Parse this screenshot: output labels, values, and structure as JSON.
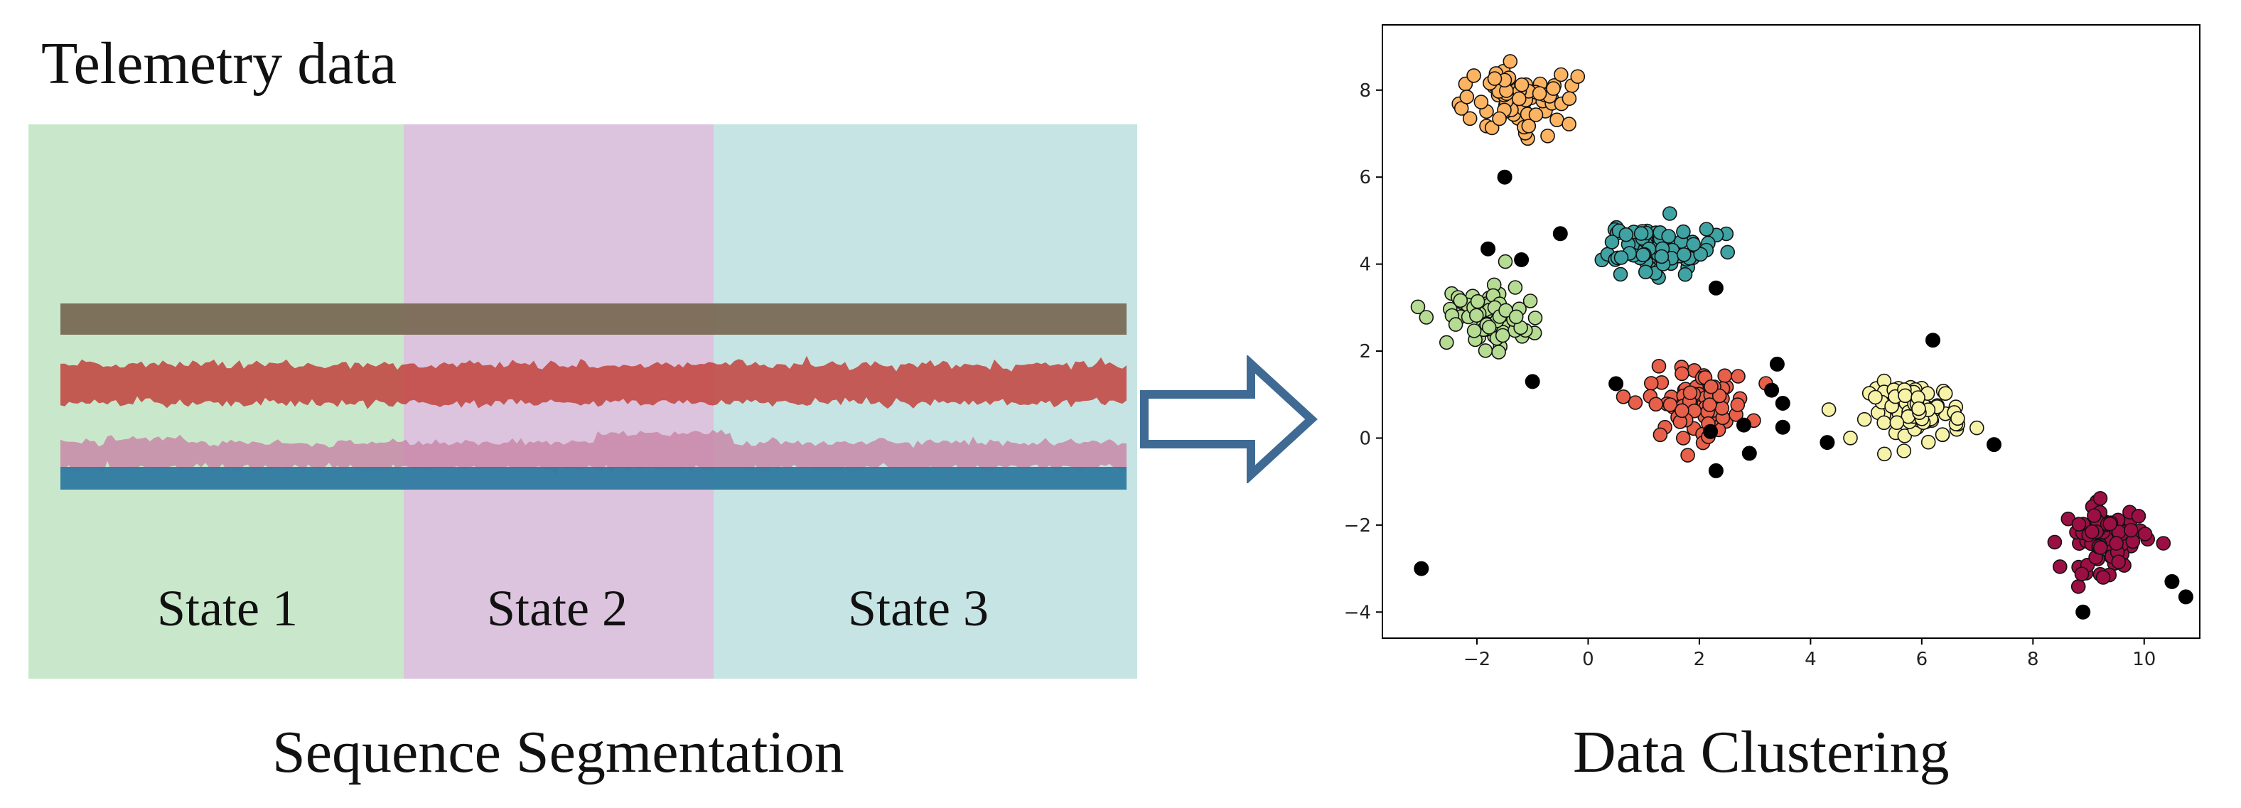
{
  "left_panel": {
    "title": "Telemetry data",
    "caption": "Sequence Segmentation",
    "states": [
      {
        "label": "State 1",
        "color": "#c9e8cb"
      },
      {
        "label": "State 2",
        "color": "#dcc3de"
      },
      {
        "label": "State 3",
        "color": "#c6e4e3"
      }
    ],
    "signal_colors": [
      "#7a6a55",
      "#c24a45",
      "#c988a8",
      "#2f7aa0"
    ]
  },
  "arrow": {
    "color": "#3f6a94"
  },
  "right_panel": {
    "caption": "Data Clustering"
  },
  "chart_data": {
    "type": "scatter",
    "title": "",
    "xlabel": "",
    "ylabel": "",
    "xlim": [
      -3.7,
      11.0
    ],
    "ylim": [
      -4.6,
      9.5
    ],
    "xticks": [
      -2,
      0,
      2,
      4,
      6,
      8,
      10
    ],
    "yticks": [
      -4,
      -2,
      0,
      2,
      4,
      6,
      8
    ],
    "xtick_labels": [
      "−2",
      "0",
      "2",
      "4",
      "6",
      "8",
      "10"
    ],
    "ytick_labels": [
      "−4",
      "−2",
      "0",
      "2",
      "4",
      "6",
      "8"
    ],
    "grid": false,
    "series": [
      {
        "color": "#fdb462",
        "center": [
          -1.2,
          7.8
        ],
        "spread": [
          1.3,
          0.9
        ],
        "count": 80
      },
      {
        "color": "#3fa3a3",
        "center": [
          1.3,
          4.4
        ],
        "spread": [
          1.3,
          0.8
        ],
        "count": 75
      },
      {
        "color": "#b5dc92",
        "center": [
          -1.8,
          2.9
        ],
        "spread": [
          1.0,
          1.0
        ],
        "count": 70
      },
      {
        "color": "#e8604a",
        "center": [
          2.0,
          0.8
        ],
        "spread": [
          1.2,
          1.0
        ],
        "count": 85
      },
      {
        "color": "#f6f2a8",
        "center": [
          5.9,
          0.6
        ],
        "spread": [
          1.1,
          0.9
        ],
        "count": 80
      },
      {
        "color": "#9c0f44",
        "center": [
          9.3,
          -2.3
        ],
        "spread": [
          1.0,
          1.0
        ],
        "count": 75
      }
    ],
    "noise_color": "#000000",
    "noise_points": [
      [
        -3.0,
        -3.0
      ],
      [
        -1.5,
        6.0
      ],
      [
        -1.8,
        4.35
      ],
      [
        -1.2,
        4.1
      ],
      [
        -0.5,
        4.7
      ],
      [
        -1.0,
        1.3
      ],
      [
        0.5,
        1.25
      ],
      [
        2.2,
        0.15
      ],
      [
        2.8,
        0.3
      ],
      [
        3.4,
        1.7
      ],
      [
        3.5,
        0.8
      ],
      [
        3.5,
        0.25
      ],
      [
        4.3,
        -0.1
      ],
      [
        2.9,
        -0.35
      ],
      [
        2.3,
        -0.75
      ],
      [
        2.3,
        3.45
      ],
      [
        6.2,
        2.25
      ],
      [
        7.3,
        -0.15
      ],
      [
        8.9,
        -4.0
      ],
      [
        10.5,
        -3.3
      ],
      [
        10.75,
        -3.65
      ],
      [
        3.3,
        1.1
      ]
    ]
  }
}
